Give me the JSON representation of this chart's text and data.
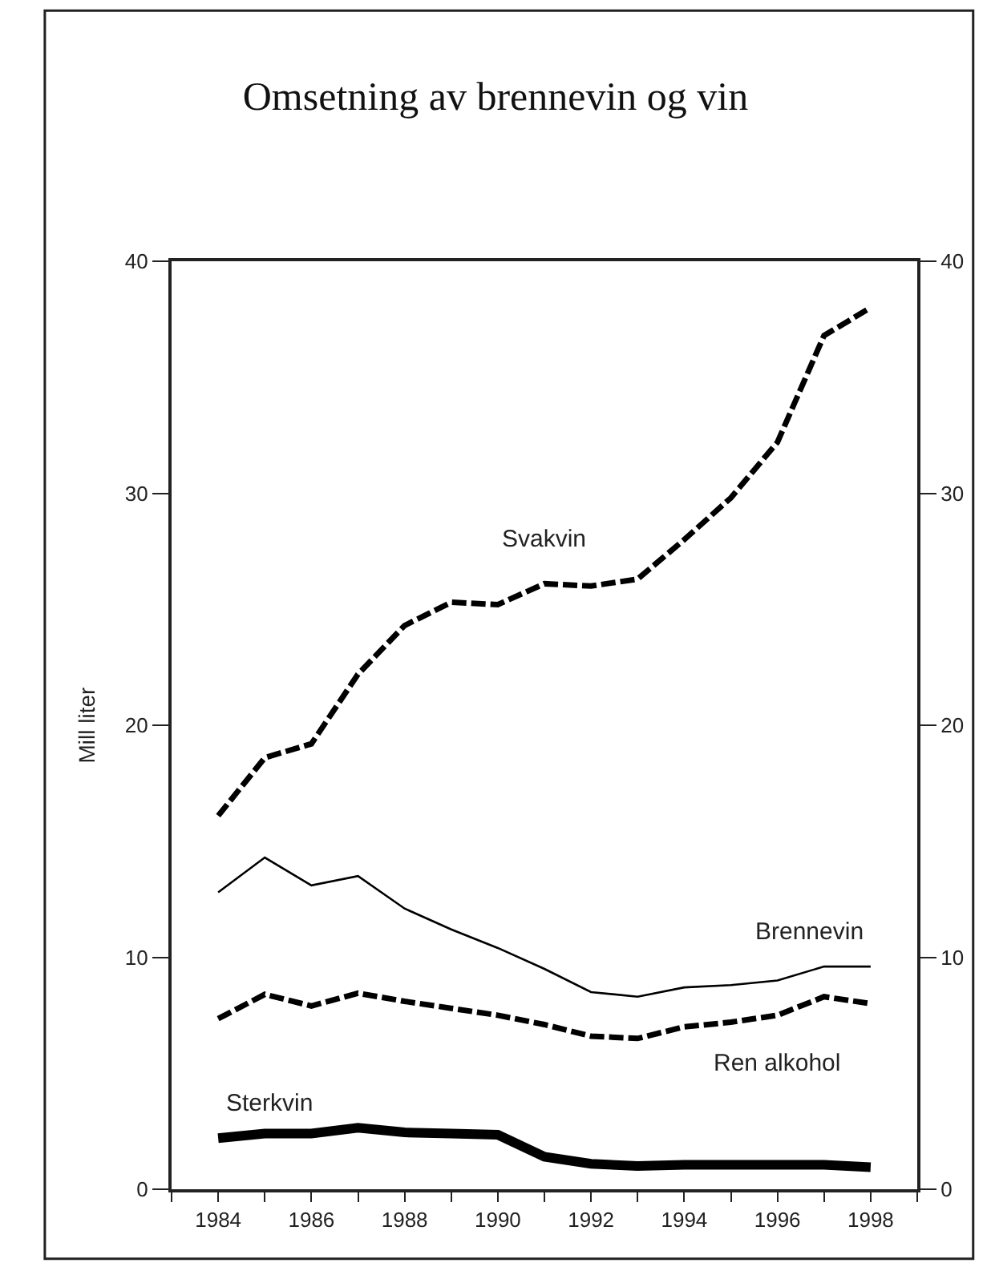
{
  "chart_data": {
    "type": "line",
    "title": "Omsetning av brennevin og vin",
    "ylabel": "Mill liter",
    "x": [
      1984,
      1985,
      1986,
      1987,
      1988,
      1989,
      1990,
      1991,
      1992,
      1993,
      1994,
      1995,
      1996,
      1997,
      1998
    ],
    "series": [
      {
        "name": "Svakvin",
        "color": "#000000",
        "line_style": "dashed",
        "values": [
          16.1,
          18.6,
          19.2,
          22.2,
          24.3,
          25.3,
          25.2,
          26.1,
          26.0,
          26.3,
          28.0,
          29.8,
          32.2,
          36.8,
          38.0
        ]
      },
      {
        "name": "Brennevin",
        "color": "#000000",
        "line_style": "solid",
        "values": [
          12.8,
          14.3,
          13.1,
          13.5,
          12.1,
          11.2,
          10.4,
          9.5,
          8.5,
          8.3,
          8.7,
          8.8,
          9.0,
          9.6,
          9.6
        ]
      },
      {
        "name": "Ren alkohol",
        "color": "#000000",
        "line_style": "dashed",
        "values": [
          7.35,
          8.4,
          7.9,
          8.45,
          8.1,
          7.8,
          7.5,
          7.1,
          6.6,
          6.5,
          7.0,
          7.2,
          7.5,
          8.3,
          8.0
        ]
      },
      {
        "name": "Sterkvin",
        "color": "#000000",
        "line_style": "solid",
        "values": [
          2.2,
          2.4,
          2.4,
          2.65,
          2.45,
          2.4,
          2.35,
          1.4,
          1.1,
          1.0,
          1.05,
          1.05,
          1.05,
          1.05,
          0.95
        ]
      }
    ],
    "xlim": [
      1983,
      1999
    ],
    "xticks": [
      1984,
      1986,
      1988,
      1990,
      1992,
      1994,
      1996,
      1998
    ],
    "ylim": [
      0,
      40
    ],
    "yticks": [
      0,
      10,
      20,
      30,
      40
    ],
    "y2lim": [
      0,
      40
    ],
    "y2ticks": [
      0,
      10,
      20,
      30,
      40
    ],
    "grid": false,
    "legend": false,
    "marker": "none"
  }
}
